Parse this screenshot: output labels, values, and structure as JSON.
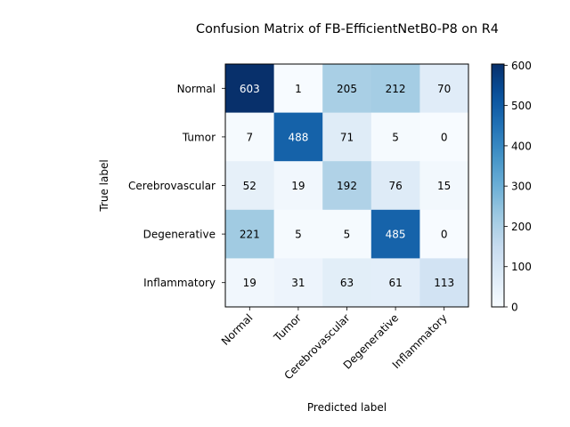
{
  "chart_data": {
    "type": "heatmap",
    "title": "Confusion Matrix of FB-EfficientNetB0-P8 on R4",
    "xlabel": "Predicted label",
    "ylabel": "True label",
    "x_categories": [
      "Normal",
      "Tumor",
      "Cerebrovascular",
      "Degenerative",
      "Inflammatory"
    ],
    "y_categories": [
      "Normal",
      "Tumor",
      "Cerebrovascular",
      "Degenerative",
      "Inflammatory"
    ],
    "values": [
      [
        603,
        1,
        205,
        212,
        70
      ],
      [
        7,
        488,
        71,
        5,
        0
      ],
      [
        52,
        19,
        192,
        76,
        15
      ],
      [
        221,
        5,
        5,
        485,
        0
      ],
      [
        19,
        31,
        63,
        61,
        113
      ]
    ],
    "colorbar": {
      "colormap": "Blues",
      "range": [
        0,
        603
      ],
      "ticks": [
        0,
        100,
        200,
        300,
        400,
        500,
        600
      ]
    },
    "grid": false
  }
}
